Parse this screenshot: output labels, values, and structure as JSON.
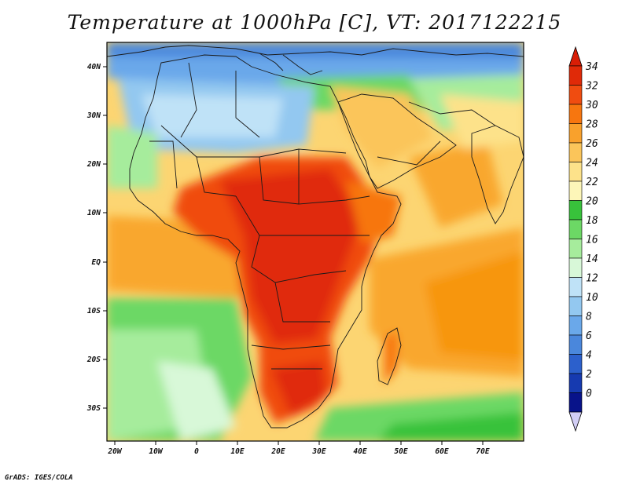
{
  "title": "Temperature at 1000hPa [C], VT: 2017122215",
  "credit": "GrADS: IGES/COLA",
  "lon_ticks": [
    "20W",
    "10W",
    "0",
    "10E",
    "20E",
    "30E",
    "40E",
    "50E",
    "60E",
    "70E"
  ],
  "lat_ticks": [
    "40N",
    "30N",
    "20N",
    "10N",
    "EQ",
    "10S",
    "20S",
    "30S"
  ],
  "colorbar": {
    "labels": [
      "34",
      "32",
      "30",
      "28",
      "26",
      "24",
      "22",
      "20",
      "18",
      "16",
      "14",
      "12",
      "10",
      "8",
      "6",
      "4",
      "2",
      "0"
    ],
    "colors": [
      "#e02a08",
      "#f04c10",
      "#f7760f",
      "#f9a12c",
      "#fbc55a",
      "#fde28a",
      "#fdf6b8",
      "#38c23b",
      "#6cd865",
      "#a6ec9c",
      "#d8f8d8",
      "#bfe2f7",
      "#93c8f0",
      "#6aa8ea",
      "#4a87dc",
      "#2c60cc",
      "#163ab0",
      "#08138a"
    ],
    "over_color": "#d81e06",
    "under_color": "#d2cef5"
  },
  "colors": {
    "ocean_warm": "#f9a72f",
    "ocean_mild": "#fcd572",
    "ocean_cool": "#6cd865",
    "sahara_cool": "#93c8f0",
    "land_hot": "#e02a08"
  }
}
